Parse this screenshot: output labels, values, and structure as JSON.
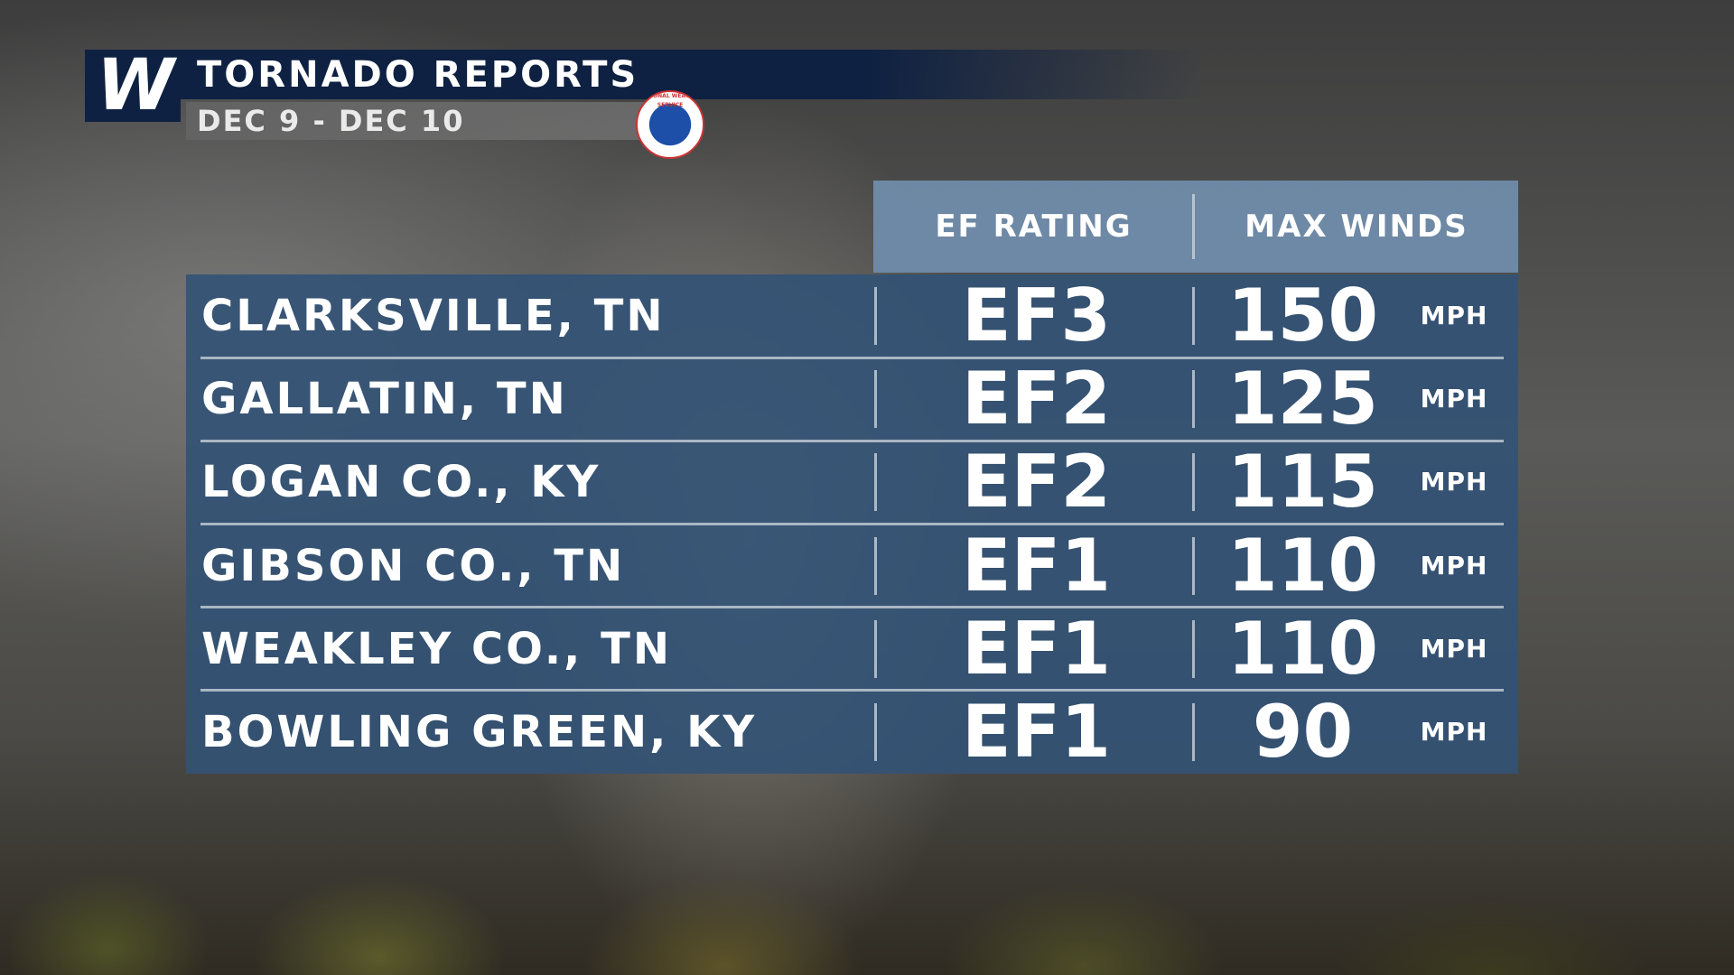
{
  "header": {
    "logo": "W",
    "title": "TORNADO REPORTS",
    "subtitle": "DEC 9 - DEC 10",
    "badge": "NATIONAL WEATHER SERVICE"
  },
  "table": {
    "columns": [
      "EF RATING",
      "MAX WINDS"
    ],
    "rows": [
      [
        "CLARKSVILLE, TN",
        "EF3",
        150,
        "MPH"
      ],
      [
        "GALLATIN, TN",
        "EF2",
        125,
        "MPH"
      ],
      [
        "LOGAN CO., KY",
        "EF2",
        115,
        "MPH"
      ],
      [
        "GIBSON CO., TN",
        "EF1",
        110,
        "MPH"
      ],
      [
        "WEAKLEY CO., TN",
        "EF1",
        110,
        "MPH"
      ],
      [
        "BOWLING GREEN, KY",
        "EF1",
        90,
        "MPH"
      ]
    ]
  }
}
